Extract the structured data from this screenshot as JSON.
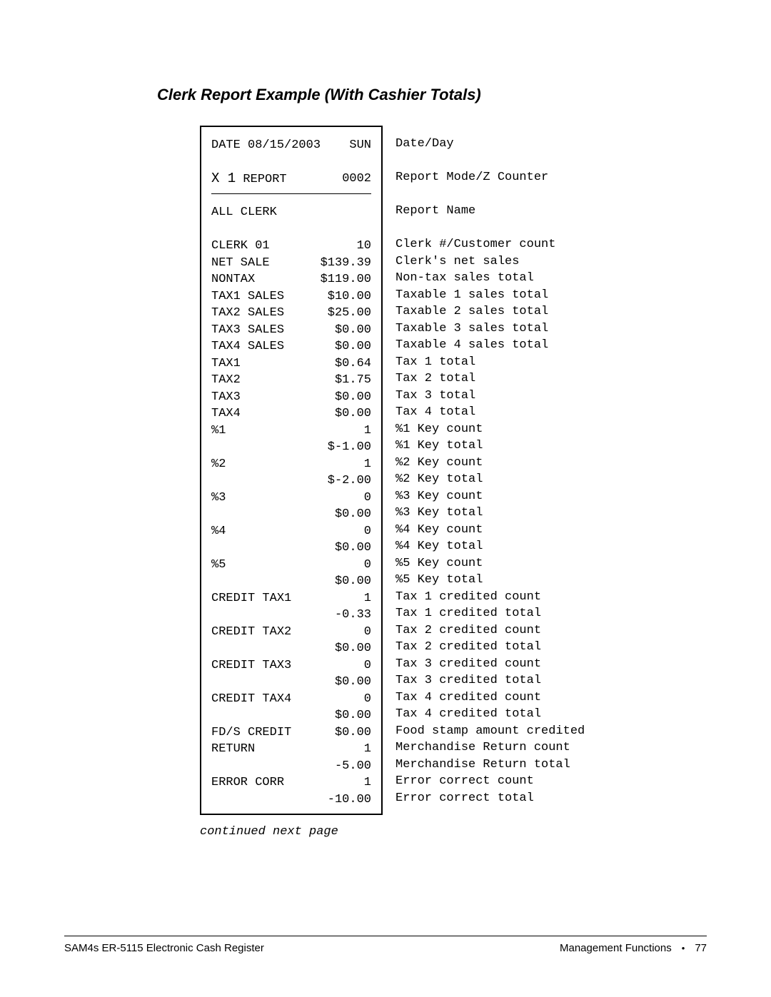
{
  "title": "Clerk Report Example (With Cashier Totals)",
  "continued": "continued next page",
  "footer": {
    "left": "SAM4s ER-5115 Electronic Cash Register",
    "section": "Management Functions",
    "page": "77"
  },
  "receipt": {
    "date_line": {
      "left": "DATE 08/15/2003",
      "right": "SUN"
    },
    "mode_line": {
      "left_big": "X 1",
      "left_rest": " REPORT",
      "right": "0002"
    },
    "name_line": {
      "left": "ALL CLERK",
      "right": ""
    },
    "rows": [
      {
        "left": "CLERK 01",
        "right": "10"
      },
      {
        "left": "NET SALE",
        "right": "$139.39"
      },
      {
        "left": "NONTAX",
        "right": "$119.00"
      },
      {
        "left": "TAX1 SALES",
        "right": "$10.00"
      },
      {
        "left": "TAX2 SALES",
        "right": "$25.00"
      },
      {
        "left": "TAX3 SALES",
        "right": "$0.00"
      },
      {
        "left": "TAX4 SALES",
        "right": "$0.00"
      },
      {
        "left": "TAX1",
        "right": "$0.64"
      },
      {
        "left": "TAX2",
        "right": "$1.75"
      },
      {
        "left": "TAX3",
        "right": "$0.00"
      },
      {
        "left": "TAX4",
        "right": "$0.00"
      },
      {
        "left": "%1",
        "right": "1"
      },
      {
        "left": "",
        "right": "$-1.00"
      },
      {
        "left": "%2",
        "right": "1"
      },
      {
        "left": "",
        "right": "$-2.00"
      },
      {
        "left": "%3",
        "right": "0"
      },
      {
        "left": "",
        "right": "$0.00"
      },
      {
        "left": "%4",
        "right": "0"
      },
      {
        "left": "",
        "right": "$0.00"
      },
      {
        "left": "%5",
        "right": "0"
      },
      {
        "left": "",
        "right": "$0.00"
      },
      {
        "left": "CREDIT TAX1",
        "right": "1"
      },
      {
        "left": "",
        "right": "-0.33"
      },
      {
        "left": "CREDIT TAX2",
        "right": "0"
      },
      {
        "left": "",
        "right": "$0.00"
      },
      {
        "left": "CREDIT TAX3",
        "right": "0"
      },
      {
        "left": "",
        "right": "$0.00"
      },
      {
        "left": "CREDIT TAX4",
        "right": "0"
      },
      {
        "left": "",
        "right": "$0.00"
      },
      {
        "left": "FD/S CREDIT",
        "right": "$0.00"
      },
      {
        "left": "RETURN",
        "right": "1"
      },
      {
        "left": "",
        "right": "-5.00"
      },
      {
        "left": "ERROR CORR",
        "right": "1"
      },
      {
        "left": "",
        "right": "-10.00"
      }
    ]
  },
  "annotations": {
    "date": "Date/Day",
    "mode": "Report Mode/Z Counter",
    "name": "Report Name",
    "rows": [
      "Clerk #/Customer count",
      "Clerk's net sales",
      "Non-tax sales total",
      "Taxable 1 sales total",
      "Taxable 2 sales total",
      "Taxable 3 sales total",
      "Taxable 4 sales total",
      "Tax 1 total",
      "Tax 2 total",
      "Tax 3 total",
      "Tax 4 total",
      "%1 Key count",
      "%1 Key total",
      "%2 Key count",
      "%2 Key total",
      "%3 Key count",
      "%3 Key total",
      "%4 Key count",
      "%4 Key total",
      "%5 Key count",
      "%5 Key total",
      "Tax 1 credited count",
      "Tax 1 credited total",
      "Tax 2 credited count",
      "Tax 2 credited total",
      "Tax 3 credited count",
      "Tax 3 credited total",
      "Tax 4 credited count",
      "Tax 4 credited total",
      "Food stamp amount credited",
      "Merchandise Return count",
      "Merchandise Return total",
      "Error correct count",
      "Error correct total"
    ]
  }
}
